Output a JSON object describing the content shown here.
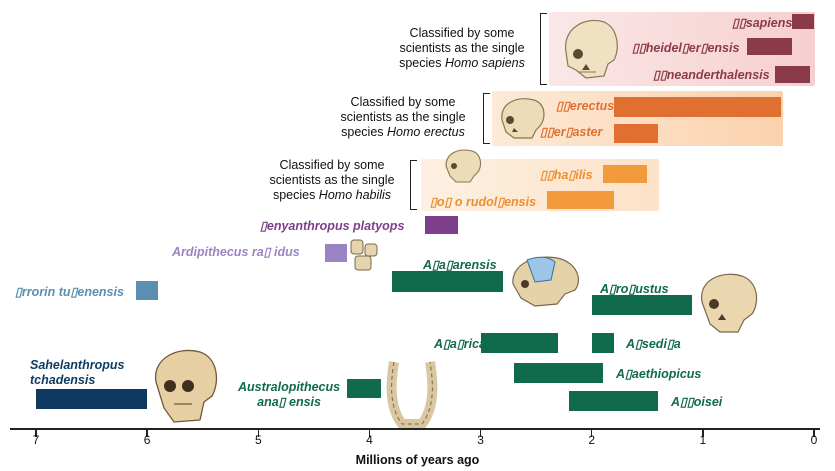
{
  "notes": {
    "sapiens": {
      "line1": "Classified by some",
      "line2": "scientists as the single",
      "line3_prefix": "species ",
      "line3_italic": "Homo sapiens"
    },
    "erectus": {
      "line1": "Classified by some",
      "line2": "scientists as the single",
      "line3_prefix": "species ",
      "line3_italic": "Homo erectus"
    },
    "habilis": {
      "line1": "Classified by some",
      "line2": "scientists as the single",
      "line3_prefix": "species ",
      "line3_italic": "Homo habilis"
    }
  },
  "species": {
    "sapiens": "▯▯sapiens",
    "heidelbergensis": "▯▯heidel▯er▯ensis",
    "neanderthalensis": "▯▯neanderthalensis",
    "erectus": "▯▯erectus",
    "ergaster": "▯▯er▯aster",
    "habilis": "▯▯ha▯ilis",
    "rudolfensis": "▯o▯ o rudol▯ensis",
    "platyops": "▯enyanthropus platyops",
    "ramidus": "Ardipithecus ra▯ idus",
    "tugenensis": "▯rrorin tu▯enensis",
    "afarensis": "A▯a▯arensis",
    "robustus": "A▯ro▯ustus",
    "africanus": "A▯a▯ricanus",
    "sediba": "A▯sedi▯a",
    "aethiopicus": "A▯aethiopicus",
    "boisei": "A▯▯oisei",
    "anamensis_1": "Australopithecus",
    "anamensis_2": "ana▯ ensis",
    "sahel_1": "Sahelanthropus",
    "sahel_2": "tchadensis"
  },
  "axis": {
    "label": "Millions of years ago",
    "ticks": [
      "7",
      "6",
      "5",
      "4",
      "3",
      "2",
      "1",
      "0"
    ],
    "domain": [
      7,
      0
    ]
  },
  "colors": {
    "homo_sapiens_group": "#8b3a4a",
    "homo_erectus_group": "#e07032",
    "homo_habilis_group": "#f39a3c",
    "kenyanthropus": "#7d3f8c",
    "ardipithecus": "#9a85c2",
    "orrorin": "#5b8fb0",
    "australopithecus": "#0f6b4c",
    "sahelanthropus": "#0d3a5e",
    "band_pink": "#f6cfd0",
    "band_orange": "#fbd9b8",
    "band_peach": "#fce6cf"
  },
  "timeline": [
    {
      "id": "sapiens",
      "start": 0.2,
      "end": 0.0,
      "row": 0,
      "group": "homo_sapiens_group"
    },
    {
      "id": "heidelbergensis",
      "start": 0.6,
      "end": 0.2,
      "row": 1,
      "group": "homo_sapiens_group"
    },
    {
      "id": "neanderthalensis",
      "start": 0.35,
      "end": 0.04,
      "row": 2,
      "group": "homo_sapiens_group"
    },
    {
      "id": "erectus",
      "start": 1.8,
      "end": 0.3,
      "row": 3,
      "group": "homo_erectus_group"
    },
    {
      "id": "ergaster",
      "start": 1.8,
      "end": 1.4,
      "row": 4,
      "group": "homo_erectus_group"
    },
    {
      "id": "habilis",
      "start": 1.9,
      "end": 1.5,
      "row": 5,
      "group": "homo_habilis_group"
    },
    {
      "id": "rudolfensis",
      "start": 2.4,
      "end": 1.8,
      "row": 6,
      "group": "homo_habilis_group"
    },
    {
      "id": "platyops",
      "start": 3.5,
      "end": 3.2,
      "row": 7,
      "group": "kenyanthropus"
    },
    {
      "id": "ramidus",
      "start": 4.4,
      "end": 4.2,
      "row": 8,
      "group": "ardipithecus"
    },
    {
      "id": "tugenensis",
      "start": 6.1,
      "end": 5.9,
      "row": 9,
      "group": "orrorin"
    },
    {
      "id": "afarensis",
      "start": 3.8,
      "end": 2.8,
      "row": 10,
      "group": "australopithecus"
    },
    {
      "id": "robustus",
      "start": 2.0,
      "end": 1.1,
      "row": 11,
      "group": "australopithecus"
    },
    {
      "id": "africanus",
      "start": 3.0,
      "end": 2.3,
      "row": 12,
      "group": "australopithecus"
    },
    {
      "id": "sediba",
      "start": 2.0,
      "end": 1.8,
      "row": 13,
      "group": "australopithecus"
    },
    {
      "id": "aethiopicus",
      "start": 2.7,
      "end": 1.9,
      "row": 14,
      "group": "australopithecus"
    },
    {
      "id": "anamensis",
      "start": 4.2,
      "end": 3.9,
      "row": 15,
      "group": "australopithecus"
    },
    {
      "id": "boisei",
      "start": 2.2,
      "end": 1.4,
      "row": 16,
      "group": "australopithecus"
    },
    {
      "id": "sahelanthropus",
      "start": 7.0,
      "end": 6.0,
      "row": 17,
      "group": "sahelanthropus"
    }
  ]
}
